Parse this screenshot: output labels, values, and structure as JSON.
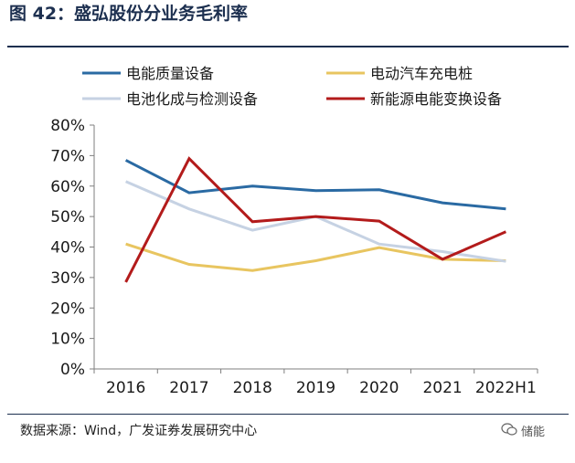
{
  "figure": {
    "title": "图 42：盛弘股份分业务毛利率",
    "source": "数据来源：Wind，广发证券发展研究中心",
    "watermark": "储能"
  },
  "chart_data": {
    "type": "line",
    "title": "盛弘股份分业务毛利率",
    "categories": [
      "2016",
      "2017",
      "2018",
      "2019",
      "2020",
      "2021",
      "2022H1"
    ],
    "ylim": [
      0,
      80
    ],
    "ytick_values": [
      0,
      10,
      20,
      30,
      40,
      50,
      60,
      70,
      80
    ],
    "ytick_labels": [
      "0%",
      "10%",
      "20%",
      "30%",
      "40%",
      "50%",
      "60%",
      "70%",
      "80%"
    ],
    "xlabel": "",
    "ylabel": "",
    "grid": false,
    "legend_position": "top",
    "series": [
      {
        "name": "电能质量设备",
        "color": "#2a6aa3",
        "values": [
          68.5,
          57.8,
          60.0,
          58.5,
          58.8,
          54.5,
          52.5
        ]
      },
      {
        "name": "电动汽车充电桩",
        "color": "#e8c560",
        "values": [
          41.0,
          34.3,
          32.3,
          35.5,
          39.8,
          36.0,
          35.5
        ]
      },
      {
        "name": "电池化成与检测设备",
        "color": "#c6d2e3",
        "values": [
          61.5,
          52.5,
          45.5,
          50.0,
          41.0,
          38.5,
          35.3
        ]
      },
      {
        "name": "新能源电能变换设备",
        "color": "#b31b1b",
        "values": [
          28.5,
          69.0,
          48.3,
          50.0,
          48.5,
          36.0,
          45.0
        ]
      }
    ]
  }
}
